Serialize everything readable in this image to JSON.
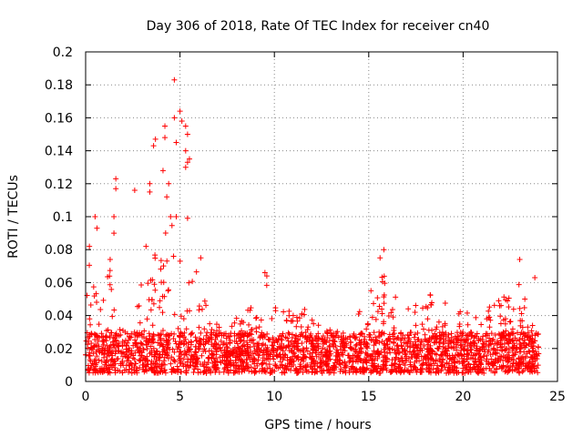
{
  "chart_data": {
    "type": "scatter",
    "title": "Day 306 of 2018, Rate Of TEC Index for receiver cn40",
    "xlabel": "GPS time / hours",
    "ylabel": "ROTI / TECUs",
    "xlim": [
      0,
      25
    ],
    "ylim": [
      0,
      0.2
    ],
    "xticks": [
      0,
      5,
      10,
      15,
      20,
      25
    ],
    "yticks": [
      0,
      0.02,
      0.04,
      0.06,
      0.08,
      0.1,
      0.12,
      0.14,
      0.16,
      0.18,
      0.2
    ],
    "xtick_labels": [
      "0",
      "5",
      "10",
      "15",
      "20",
      "25"
    ],
    "ytick_labels": [
      "0",
      "0.02",
      "0.04",
      "0.06",
      "0.08",
      "0.1",
      "0.12",
      "0.14",
      "0.16",
      "0.18",
      "0.2"
    ],
    "grid": true,
    "marker": "+",
    "color": "#ff0000",
    "series": [
      {
        "name": "ROTI",
        "data_range_hours": [
          0,
          24
        ],
        "baseline_range": [
          0.005,
          0.03
        ],
        "envelope": [
          {
            "x": 0.0,
            "y": 0.04
          },
          {
            "x": 0.2,
            "y": 0.08
          },
          {
            "x": 0.6,
            "y": 0.05
          },
          {
            "x": 1.0,
            "y": 0.06
          },
          {
            "x": 1.4,
            "y": 0.07
          },
          {
            "x": 1.8,
            "y": 0.04
          },
          {
            "x": 2.2,
            "y": 0.025
          },
          {
            "x": 2.6,
            "y": 0.04
          },
          {
            "x": 3.0,
            "y": 0.065
          },
          {
            "x": 3.5,
            "y": 0.08
          },
          {
            "x": 4.0,
            "y": 0.09
          },
          {
            "x": 4.5,
            "y": 0.1
          },
          {
            "x": 5.0,
            "y": 0.1
          },
          {
            "x": 5.5,
            "y": 0.06
          },
          {
            "x": 6.0,
            "y": 0.07
          },
          {
            "x": 6.5,
            "y": 0.04
          },
          {
            "x": 7.5,
            "y": 0.035
          },
          {
            "x": 8.5,
            "y": 0.045
          },
          {
            "x": 9.5,
            "y": 0.06
          },
          {
            "x": 10.5,
            "y": 0.045
          },
          {
            "x": 11.5,
            "y": 0.045
          },
          {
            "x": 12.5,
            "y": 0.035
          },
          {
            "x": 13.5,
            "y": 0.03
          },
          {
            "x": 14.0,
            "y": 0.025
          },
          {
            "x": 14.6,
            "y": 0.05
          },
          {
            "x": 15.3,
            "y": 0.07
          },
          {
            "x": 15.8,
            "y": 0.065
          },
          {
            "x": 16.5,
            "y": 0.05
          },
          {
            "x": 17.3,
            "y": 0.045
          },
          {
            "x": 18.0,
            "y": 0.06
          },
          {
            "x": 18.7,
            "y": 0.05
          },
          {
            "x": 19.5,
            "y": 0.045
          },
          {
            "x": 20.3,
            "y": 0.045
          },
          {
            "x": 21.0,
            "y": 0.04
          },
          {
            "x": 22.0,
            "y": 0.055
          },
          {
            "x": 22.5,
            "y": 0.05
          },
          {
            "x": 23.0,
            "y": 0.06
          },
          {
            "x": 23.6,
            "y": 0.04
          },
          {
            "x": 24.0,
            "y": 0.03
          }
        ],
        "outliers": [
          {
            "x": 0.2,
            "y": 0.082
          },
          {
            "x": 0.5,
            "y": 0.1
          },
          {
            "x": 0.6,
            "y": 0.093
          },
          {
            "x": 1.3,
            "y": 0.074
          },
          {
            "x": 1.5,
            "y": 0.1
          },
          {
            "x": 1.5,
            "y": 0.09
          },
          {
            "x": 1.6,
            "y": 0.123
          },
          {
            "x": 1.6,
            "y": 0.117
          },
          {
            "x": 2.6,
            "y": 0.116
          },
          {
            "x": 3.2,
            "y": 0.082
          },
          {
            "x": 3.4,
            "y": 0.12
          },
          {
            "x": 3.4,
            "y": 0.115
          },
          {
            "x": 3.6,
            "y": 0.143
          },
          {
            "x": 3.7,
            "y": 0.147
          },
          {
            "x": 4.1,
            "y": 0.128
          },
          {
            "x": 4.2,
            "y": 0.148
          },
          {
            "x": 4.2,
            "y": 0.155
          },
          {
            "x": 4.3,
            "y": 0.112
          },
          {
            "x": 4.4,
            "y": 0.12
          },
          {
            "x": 4.5,
            "y": 0.1
          },
          {
            "x": 4.7,
            "y": 0.183
          },
          {
            "x": 4.7,
            "y": 0.16
          },
          {
            "x": 4.8,
            "y": 0.145
          },
          {
            "x": 4.8,
            "y": 0.1
          },
          {
            "x": 5.0,
            "y": 0.164
          },
          {
            "x": 5.1,
            "y": 0.158
          },
          {
            "x": 5.3,
            "y": 0.155
          },
          {
            "x": 5.4,
            "y": 0.15
          },
          {
            "x": 5.3,
            "y": 0.14
          },
          {
            "x": 5.4,
            "y": 0.133
          },
          {
            "x": 5.3,
            "y": 0.13
          },
          {
            "x": 5.5,
            "y": 0.135
          },
          {
            "x": 5.4,
            "y": 0.099
          },
          {
            "x": 6.1,
            "y": 0.075
          },
          {
            "x": 9.5,
            "y": 0.066
          },
          {
            "x": 9.6,
            "y": 0.064
          },
          {
            "x": 15.8,
            "y": 0.08
          },
          {
            "x": 15.6,
            "y": 0.075
          },
          {
            "x": 23.0,
            "y": 0.074
          },
          {
            "x": 23.8,
            "y": 0.063
          }
        ]
      }
    ]
  }
}
